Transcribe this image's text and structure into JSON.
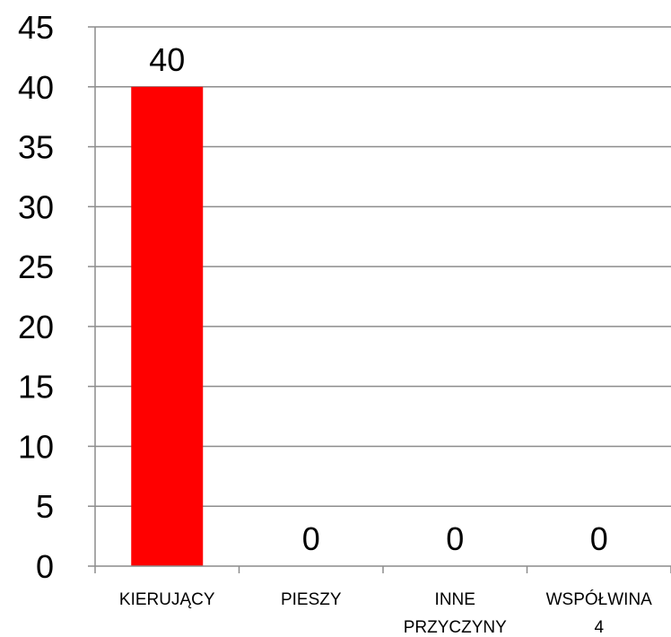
{
  "chart_data": {
    "type": "bar",
    "categories": [
      [
        "KIERUJĄCY"
      ],
      [
        "PIESZY"
      ],
      [
        "INNE",
        "PRZYCZYNY"
      ],
      [
        "WSPÓŁWINA",
        "4"
      ]
    ],
    "values": [
      40,
      0,
      0,
      0
    ],
    "data_labels": [
      "40",
      "0",
      "0",
      "0"
    ],
    "ylim": [
      0,
      45
    ],
    "yticks": [
      0,
      5,
      10,
      15,
      20,
      25,
      30,
      35,
      40,
      45
    ],
    "grid": true,
    "legend": "none",
    "bar_color": "#ff0000",
    "grid_color": "#8c8c8c"
  }
}
